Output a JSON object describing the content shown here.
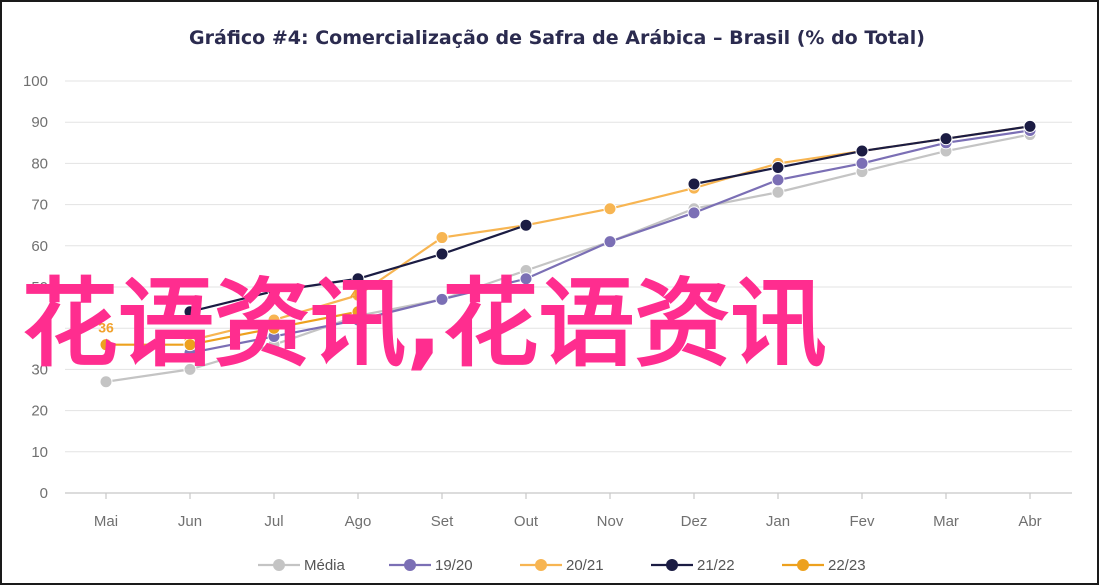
{
  "chart_data": {
    "type": "line",
    "title": "Gráfico #4: Comercialização de Safra de Arábica – Brasil (% do Total)",
    "xlabel": "",
    "ylabel": "",
    "ylim": [
      0,
      100
    ],
    "yticks": [
      0,
      10,
      20,
      30,
      40,
      50,
      60,
      70,
      80,
      90,
      100
    ],
    "categories": [
      "Mai",
      "Jun",
      "Jul",
      "Ago",
      "Set",
      "Out",
      "Nov",
      "Dez",
      "Jan",
      "Fev",
      "Mar",
      "Abr"
    ],
    "grid": true,
    "legend_position": "bottom",
    "series": [
      {
        "name": "Média",
        "color": "#c4c4c4",
        "values": [
          27,
          30,
          36,
          43,
          47,
          54,
          61,
          69,
          73,
          78,
          83,
          87
        ]
      },
      {
        "name": "19/20",
        "color": "#7b6fb5",
        "values": [
          null,
          34,
          38,
          42,
          47,
          52,
          61,
          68,
          76,
          80,
          85,
          88
        ]
      },
      {
        "name": "20/21",
        "color": "#f7b552",
        "values": [
          null,
          37,
          42,
          48,
          62,
          65,
          69,
          74,
          80,
          83,
          86,
          89
        ]
      },
      {
        "name": "21/22",
        "color": "#1b1c43",
        "values": [
          null,
          44,
          49,
          52,
          58,
          65,
          null,
          75,
          79,
          83,
          86,
          89
        ]
      },
      {
        "name": "22/23",
        "color": "#eda11e",
        "values": [
          36,
          36,
          40,
          44,
          null,
          null,
          null,
          null,
          null,
          null,
          null,
          null
        ]
      }
    ],
    "data_labels": [
      {
        "series": "22/23",
        "index": 0,
        "text": "36"
      },
      {
        "series": "22/23",
        "index": 3,
        "text": "44"
      }
    ]
  },
  "overlay_text": "花语资讯,花语资讯"
}
